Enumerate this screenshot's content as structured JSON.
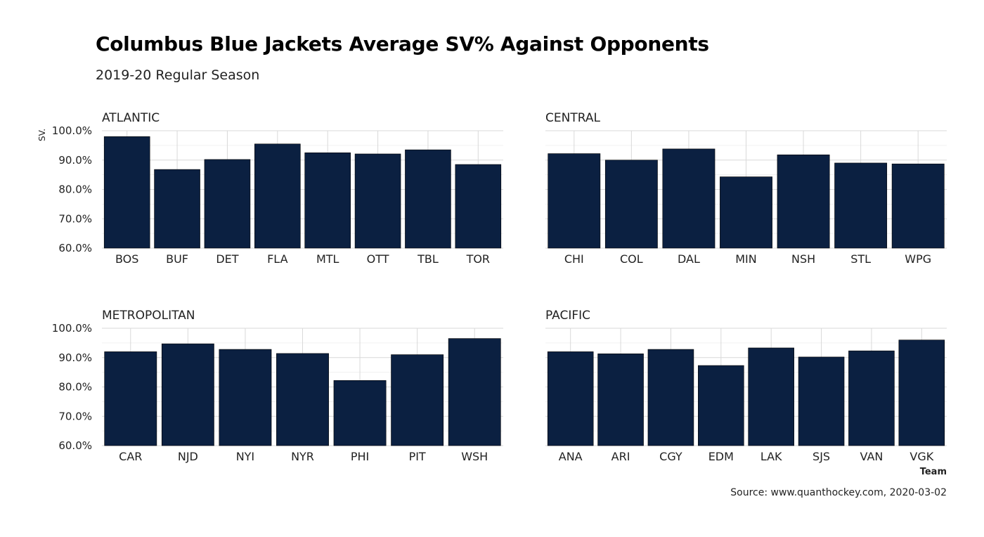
{
  "title": "Columbus Blue Jackets Average SV% Against Opponents",
  "subtitle": "2019-20 Regular Season",
  "caption": "Source: www.quanthockey.com, 2020-03-02",
  "colors": {
    "bar": "#0b2041",
    "grid": "#d9d9d9",
    "background": "#ffffff"
  },
  "chart_data": {
    "type": "bar",
    "title": "Columbus Blue Jackets Average SV% Against Opponents",
    "subtitle": "2019-20 Regular Season",
    "xlabel": "Team",
    "ylabel": "SV.",
    "ylim": [
      0.6,
      1.0
    ],
    "yticks": [
      0.6,
      0.7,
      0.8,
      0.9,
      1.0
    ],
    "ytick_labels": [
      "60.0%",
      "70.0%",
      "80.0%",
      "90.0%",
      "100.0%"
    ],
    "grid": true,
    "facets": [
      {
        "name": "ATLANTIC",
        "categories": [
          "BOS",
          "BUF",
          "DET",
          "FLA",
          "MTL",
          "OTT",
          "TBL",
          "TOR"
        ],
        "values": [
          0.98,
          0.868,
          0.902,
          0.955,
          0.925,
          0.921,
          0.935,
          0.885
        ]
      },
      {
        "name": "CENTRAL",
        "categories": [
          "CHI",
          "COL",
          "DAL",
          "MIN",
          "NSH",
          "STL",
          "WPG"
        ],
        "values": [
          0.922,
          0.9,
          0.938,
          0.843,
          0.918,
          0.89,
          0.887
        ]
      },
      {
        "name": "METROPOLITAN",
        "categories": [
          "CAR",
          "NJD",
          "NYI",
          "NYR",
          "PHI",
          "PIT",
          "WSH"
        ],
        "values": [
          0.92,
          0.947,
          0.928,
          0.914,
          0.822,
          0.91,
          0.965
        ]
      },
      {
        "name": "PACIFIC",
        "categories": [
          "ANA",
          "ARI",
          "CGY",
          "EDM",
          "LAK",
          "SJS",
          "VAN",
          "VGK"
        ],
        "values": [
          0.92,
          0.913,
          0.928,
          0.873,
          0.933,
          0.902,
          0.923,
          0.96
        ]
      }
    ]
  }
}
